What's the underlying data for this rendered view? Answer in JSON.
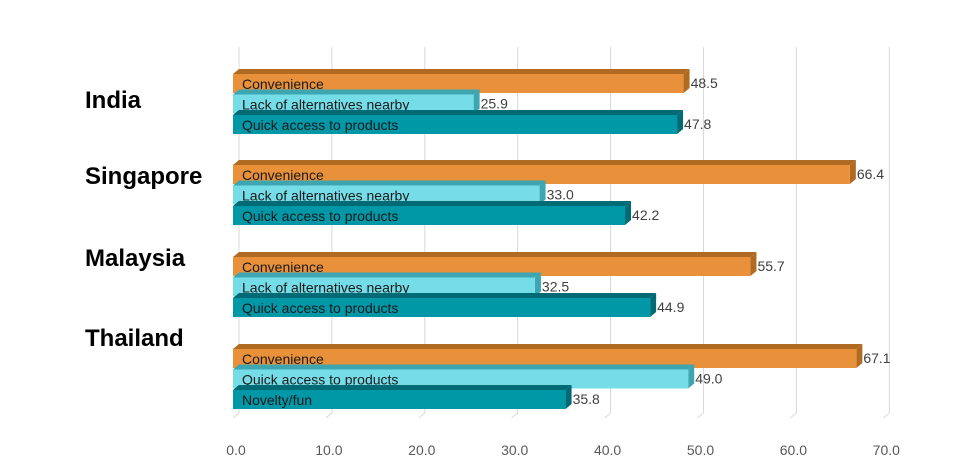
{
  "chart_data": {
    "type": "bar",
    "orientation": "horizontal",
    "title": "",
    "xlabel": "",
    "ylabel": "",
    "xlim": [
      0,
      70
    ],
    "x_ticks": [
      "0.0",
      "10.0",
      "20.0",
      "30.0",
      "40.0",
      "50.0",
      "60.0",
      "70.0"
    ],
    "grid": true,
    "groups": [
      {
        "name": "India",
        "bars": [
          {
            "label": "Convenience",
            "value": 48.5,
            "value_text": "48.5",
            "color": "#E8903A",
            "side": "#B06A22"
          },
          {
            "label": "Lack of alternatives nearby",
            "value": 25.9,
            "value_text": "25.9",
            "color": "#75DDE8",
            "side": "#3EA6B0"
          },
          {
            "label": "Quick access to products",
            "value": 47.8,
            "value_text": "47.8",
            "color": "#0097A7",
            "side": "#006A75"
          }
        ]
      },
      {
        "name": "Singapore",
        "bars": [
          {
            "label": "Convenience",
            "value": 66.4,
            "value_text": "66.4",
            "color": "#E8903A",
            "side": "#B06A22"
          },
          {
            "label": "Lack of alternatives nearby",
            "value": 33.0,
            "value_text": "33.0",
            "color": "#75DDE8",
            "side": "#3EA6B0"
          },
          {
            "label": "Quick access to products",
            "value": 42.2,
            "value_text": "42.2",
            "color": "#0097A7",
            "side": "#006A75"
          }
        ]
      },
      {
        "name": "Malaysia",
        "bars": [
          {
            "label": "Convenience",
            "value": 55.7,
            "value_text": "55.7",
            "color": "#E8903A",
            "side": "#B06A22"
          },
          {
            "label": "Lack of alternatives nearby",
            "value": 32.5,
            "value_text": "32.5",
            "color": "#75DDE8",
            "side": "#3EA6B0"
          },
          {
            "label": "Quick access to products",
            "value": 44.9,
            "value_text": "44.9",
            "color": "#0097A7",
            "side": "#006A75"
          }
        ]
      },
      {
        "name": "Thailand",
        "bars": [
          {
            "label": "Convenience",
            "value": 67.1,
            "value_text": "67.1",
            "color": "#E8903A",
            "side": "#B06A22"
          },
          {
            "label": "Quick access to products",
            "value": 49.0,
            "value_text": "49.0",
            "color": "#75DDE8",
            "side": "#3EA6B0"
          },
          {
            "label": "Novelty/fun",
            "value": 35.8,
            "value_text": "35.8",
            "color": "#0097A7",
            "side": "#006A75"
          }
        ]
      }
    ]
  }
}
